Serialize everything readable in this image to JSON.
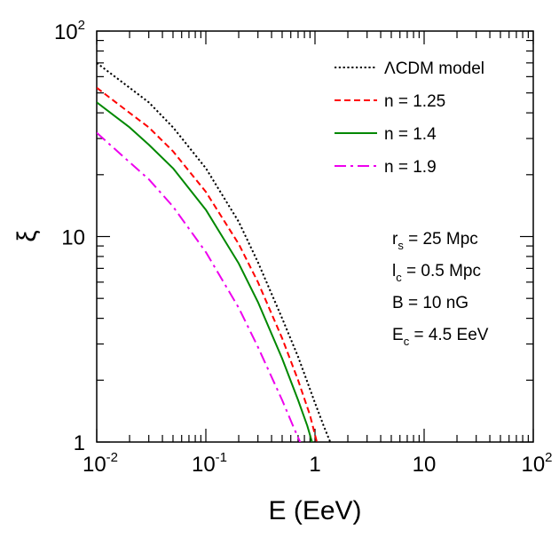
{
  "chart_data": {
    "type": "line",
    "title": "",
    "xlabel": "E (EeV)",
    "ylabel": "ξ",
    "xscale": "log",
    "yscale": "log",
    "xlim": [
      0.01,
      100
    ],
    "ylim": [
      1,
      100
    ],
    "x_ticks": [
      {
        "base": "10",
        "exp": "-2"
      },
      {
        "base": "10",
        "exp": "-1"
      },
      {
        "base": "1",
        "exp": ""
      },
      {
        "base": "10",
        "exp": ""
      },
      {
        "base": "10",
        "exp": "2"
      }
    ],
    "y_ticks": [
      {
        "base": "1",
        "exp": ""
      },
      {
        "base": "10",
        "exp": ""
      },
      {
        "base": "10",
        "exp": "2"
      }
    ],
    "legend_position": "top-right",
    "series": [
      {
        "name": "ΛCDM model",
        "color": "#000000",
        "style": "dotted",
        "x": [
          0.01,
          0.02,
          0.03,
          0.05,
          0.1,
          0.2,
          0.3,
          0.5,
          0.7,
          1.0,
          1.2,
          1.4
        ],
        "y": [
          70,
          53,
          45,
          34,
          21.5,
          11.8,
          7.5,
          4.0,
          2.6,
          1.55,
          1.2,
          0.98
        ]
      },
      {
        "name": "n = 1.25",
        "color": "#ff0000",
        "style": "dashed",
        "x": [
          0.01,
          0.02,
          0.03,
          0.05,
          0.1,
          0.2,
          0.3,
          0.5,
          0.7,
          0.9,
          1.05
        ],
        "y": [
          53,
          40,
          34,
          26,
          16.5,
          9.2,
          6.0,
          3.2,
          2.0,
          1.35,
          0.98
        ]
      },
      {
        "name": "n = 1.4",
        "color": "#008800",
        "style": "solid",
        "x": [
          0.01,
          0.02,
          0.03,
          0.05,
          0.1,
          0.2,
          0.3,
          0.5,
          0.7,
          0.85,
          0.95
        ],
        "y": [
          45,
          34,
          28,
          21.5,
          13.5,
          7.4,
          4.8,
          2.55,
          1.6,
          1.2,
          0.98
        ]
      },
      {
        "name": "n = 1.9",
        "color": "#ee00ee",
        "style": "dashdot",
        "x": [
          0.01,
          0.02,
          0.03,
          0.05,
          0.1,
          0.2,
          0.3,
          0.5,
          0.65,
          0.75
        ],
        "y": [
          32,
          23,
          19,
          14,
          8.4,
          4.5,
          2.9,
          1.6,
          1.15,
          0.97
        ]
      }
    ],
    "annotations": [
      {
        "main": "r",
        "sub": "s",
        "rest": " = 25 Mpc"
      },
      {
        "main": "l",
        "sub": "c",
        "rest": " = 0.5 Mpc"
      },
      {
        "main": "B = 10 nG",
        "sub": "",
        "rest": ""
      },
      {
        "main": "E",
        "sub": "c",
        "rest": " = 4.5 EeV"
      }
    ]
  }
}
